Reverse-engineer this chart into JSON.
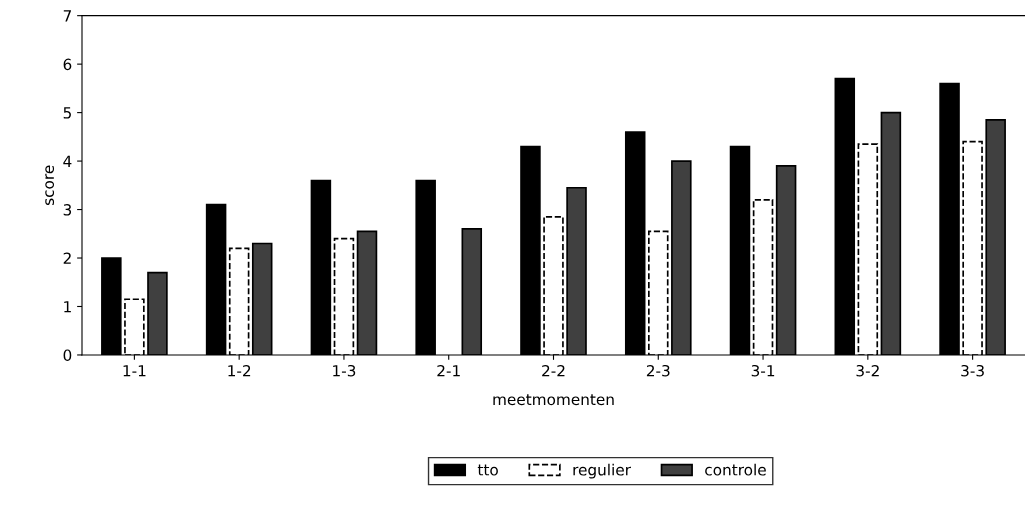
{
  "chart_data": {
    "type": "bar",
    "xlabel": "meetmomenten",
    "ylabel": "score",
    "categories": [
      "1-1",
      "1-2",
      "1-3",
      "2-1",
      "2-2",
      "2-3",
      "3-1",
      "3-2",
      "3-3"
    ],
    "series": [
      {
        "name": "tto",
        "color": "#000000",
        "values": [
          2.0,
          3.1,
          3.6,
          3.6,
          4.3,
          4.6,
          4.3,
          5.7,
          5.6
        ]
      },
      {
        "name": "regulier",
        "color": "#ffffff",
        "line_style": "dashed",
        "values": [
          1.15,
          2.2,
          2.4,
          null,
          2.85,
          2.55,
          3.2,
          4.35,
          4.4
        ]
      },
      {
        "name": "controle",
        "color": "#404040",
        "values": [
          1.7,
          2.3,
          2.55,
          2.6,
          3.45,
          4.0,
          3.9,
          5.0,
          4.85
        ]
      }
    ],
    "ylim": [
      0,
      7
    ],
    "yticks": [
      0,
      1,
      2,
      3,
      4,
      5,
      6,
      7
    ],
    "grid": false,
    "legend": "bottom"
  }
}
